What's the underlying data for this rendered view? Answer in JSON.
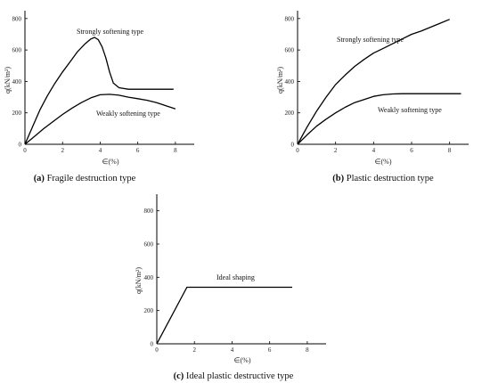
{
  "chart_data": [
    {
      "type": "line",
      "caption_letter": "(a)",
      "caption_text": " Fragile destruction type",
      "xlabel": "∈(%)",
      "ylabel": "q(kN/m²)",
      "xlim": [
        0,
        9
      ],
      "ylim": [
        0,
        850
      ],
      "xticks": [
        0,
        2,
        4,
        6,
        8
      ],
      "yticks": [
        0,
        200,
        400,
        600,
        800
      ],
      "series": [
        {
          "name": "Strongly softening type",
          "x": [
            0,
            0.4,
            0.8,
            1.2,
            1.6,
            2.0,
            2.4,
            2.8,
            3.2,
            3.5,
            3.7,
            3.9,
            4.1,
            4.3,
            4.5,
            4.7,
            5.0,
            5.5,
            6.0,
            7.0,
            7.9
          ],
          "y": [
            0,
            110,
            220,
            310,
            390,
            460,
            525,
            590,
            640,
            670,
            680,
            665,
            620,
            550,
            460,
            390,
            360,
            350,
            350,
            350,
            350
          ]
        },
        {
          "name": "Weakly softening type",
          "x": [
            0,
            0.5,
            1.0,
            1.5,
            2.0,
            2.5,
            3.0,
            3.5,
            4.0,
            4.5,
            5.0,
            5.5,
            6.0,
            6.5,
            7.0,
            7.5,
            8.0
          ],
          "y": [
            0,
            50,
            100,
            145,
            190,
            230,
            265,
            295,
            315,
            318,
            312,
            300,
            290,
            280,
            265,
            245,
            225
          ]
        }
      ],
      "annotations": [
        "Strongly softening type",
        "Weakly softening type"
      ]
    },
    {
      "type": "line",
      "caption_letter": "(b)",
      "caption_text": " Plastic destruction type",
      "xlabel": "∈(%)",
      "ylabel": "q(kN/m²)",
      "xlim": [
        0,
        9
      ],
      "ylim": [
        0,
        850
      ],
      "xticks": [
        0,
        2,
        4,
        6,
        8
      ],
      "yticks": [
        0,
        200,
        400,
        600,
        800
      ],
      "series": [
        {
          "name": "Strongly softening type",
          "x": [
            0,
            0.5,
            1.0,
            1.5,
            2.0,
            2.5,
            3.0,
            3.5,
            4.0,
            4.5,
            5.0,
            5.5,
            6.0,
            6.5,
            7.0,
            7.5,
            8.0
          ],
          "y": [
            0,
            110,
            210,
            300,
            380,
            440,
            495,
            540,
            580,
            610,
            640,
            670,
            700,
            720,
            745,
            770,
            795
          ]
        },
        {
          "name": "Weakly softening type",
          "x": [
            0,
            0.5,
            1.0,
            1.5,
            2.0,
            2.5,
            3.0,
            3.5,
            4.0,
            4.5,
            5.0,
            5.5,
            6.0,
            7.0,
            8.0,
            8.6
          ],
          "y": [
            0,
            60,
            115,
            160,
            200,
            235,
            265,
            285,
            305,
            315,
            320,
            322,
            322,
            322,
            322,
            322
          ]
        }
      ],
      "annotations": [
        "Strongly softening type",
        "Weakly softening type"
      ]
    },
    {
      "type": "line",
      "caption_letter": "(c)",
      "caption_text": " Ideal plastic destructive type",
      "xlabel": "∈(%)",
      "ylabel": "q(kN/m²)",
      "xlim": [
        0,
        9
      ],
      "ylim": [
        0,
        900
      ],
      "xticks": [
        0,
        2,
        4,
        6,
        8
      ],
      "yticks": [
        0,
        200,
        400,
        600,
        800
      ],
      "series": [
        {
          "name": "Ideal shaping",
          "x": [
            0,
            1.6,
            7.2
          ],
          "y": [
            0,
            340,
            340
          ]
        }
      ],
      "annotations": [
        "Ideal shaping"
      ]
    }
  ]
}
